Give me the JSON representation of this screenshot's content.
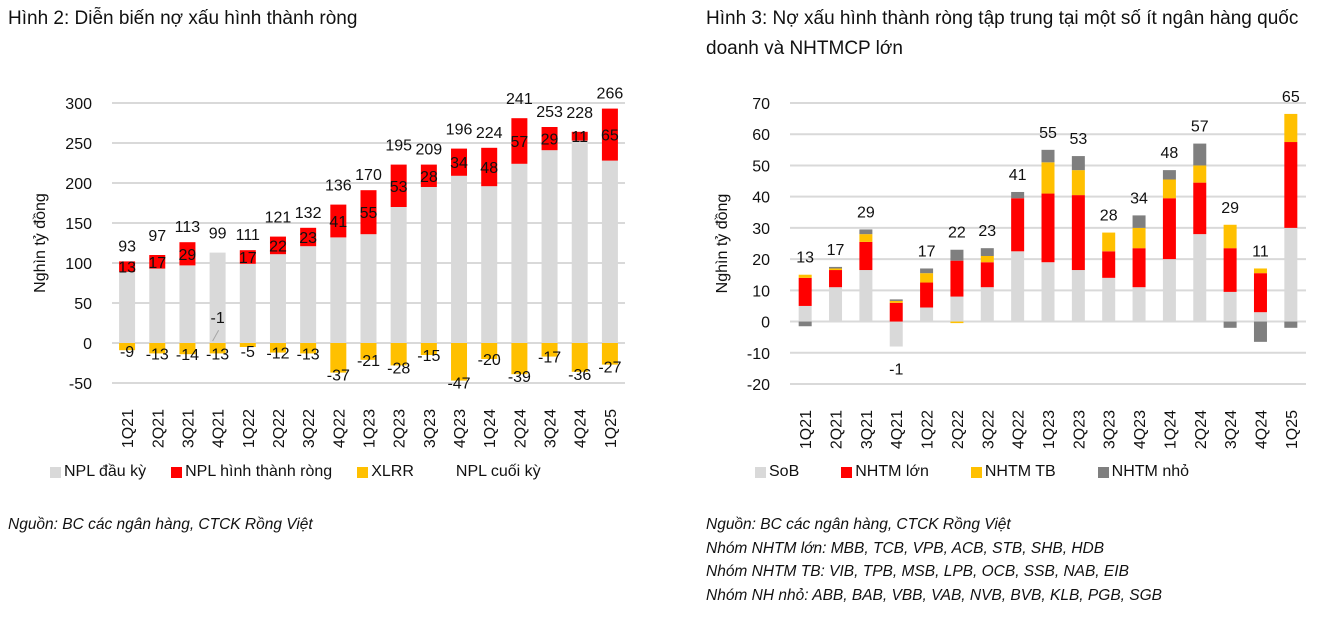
{
  "chart_data": [
    {
      "type": "bar",
      "stacked": true,
      "title": "Hình 2: Diễn biến nợ xấu hình thành ròng",
      "xlabel": "",
      "ylabel": "Nghìn tỷ đồng",
      "ylim": [
        -50,
        300
      ],
      "yticks": [
        -50,
        0,
        50,
        100,
        150,
        200,
        250,
        300
      ],
      "ytick_labels": [
        "-50",
        "0",
        "50",
        "100",
        "150",
        "200",
        "250",
        "300"
      ],
      "grid": true,
      "legend_position": "bottom",
      "categories": [
        "1Q21",
        "2Q21",
        "3Q21",
        "4Q21",
        "1Q22",
        "2Q22",
        "3Q22",
        "4Q22",
        "1Q23",
        "2Q23",
        "3Q23",
        "4Q23",
        "1Q24",
        "2Q24",
        "3Q24",
        "4Q24",
        "1Q25"
      ],
      "series": [
        {
          "name": "NPL đầu kỳ",
          "color": "#d9d9d9",
          "values": [
            89,
            93,
            97,
            113,
            99,
            111,
            121,
            132,
            136,
            170,
            195,
            209,
            196,
            224,
            241,
            253,
            228
          ]
        },
        {
          "name": "NPL hình thành ròng",
          "color": "#ff0000",
          "values": [
            13,
            17,
            29,
            -1,
            17,
            22,
            23,
            41,
            55,
            53,
            28,
            34,
            48,
            57,
            29,
            11,
            65
          ],
          "labels": [
            "13",
            "17",
            "29",
            "-1",
            "17",
            "22",
            "23",
            "41",
            "55",
            "53",
            "28",
            "34",
            "48",
            "57",
            "29",
            "11",
            "65"
          ]
        },
        {
          "name": "XLRR",
          "color": "#ffc000",
          "values": [
            -9,
            -13,
            -14,
            -13,
            -5,
            -12,
            -13,
            -37,
            -21,
            -28,
            -15,
            -47,
            -20,
            -39,
            -17,
            -36,
            -27
          ],
          "labels": [
            "-9",
            "-13",
            "-14",
            "-13",
            "-5",
            "-12",
            "-13",
            "-37",
            "-21",
            "-28",
            "-15",
            "-47",
            "-20",
            "-39",
            "-17",
            "-36",
            "-27"
          ]
        },
        {
          "name": "NPL cuối kỳ",
          "color": "none",
          "values": [
            93,
            97,
            113,
            99,
            111,
            121,
            132,
            136,
            170,
            195,
            209,
            196,
            224,
            241,
            253,
            228,
            266
          ],
          "labels": [
            "93",
            "97",
            "113",
            "99",
            "111",
            "121",
            "132",
            "136",
            "170",
            "195",
            "209",
            "196",
            "224",
            "241",
            "253",
            "228",
            "266"
          ]
        }
      ]
    },
    {
      "type": "bar",
      "stacked": true,
      "title": "Hình 3: Nợ xấu hình thành ròng  tập trung tại một số ít ngân hàng quốc doanh và NHTMCP lớn",
      "xlabel": "",
      "ylabel": "Nghìn tỷ đồng",
      "ylim": [
        -20,
        70
      ],
      "yticks": [
        -20,
        -10,
        0,
        10,
        20,
        30,
        40,
        50,
        60,
        70
      ],
      "ytick_labels": [
        "-20",
        "-10",
        "0",
        "10",
        "20",
        "30",
        "40",
        "50",
        "60",
        "70"
      ],
      "grid": true,
      "legend_position": "bottom",
      "categories": [
        "1Q21",
        "2Q21",
        "3Q21",
        "4Q21",
        "1Q22",
        "2Q22",
        "3Q22",
        "4Q22",
        "1Q23",
        "2Q23",
        "3Q23",
        "4Q23",
        "1Q24",
        "2Q24",
        "3Q24",
        "4Q24",
        "1Q25"
      ],
      "series": [
        {
          "name": "SoB",
          "color": "#d9d9d9",
          "values": [
            5,
            11,
            16.5,
            -8,
            4.5,
            8,
            11,
            22.5,
            19,
            16.5,
            14,
            11,
            20,
            28,
            9.5,
            3,
            30
          ]
        },
        {
          "name": "NHTM lớn",
          "color": "#ff0000",
          "values": [
            9,
            5.5,
            9,
            6,
            8,
            11.5,
            8,
            17,
            22,
            24,
            8.5,
            12.5,
            19.5,
            16.5,
            14,
            12.5,
            27.5
          ]
        },
        {
          "name": "NHTM TB",
          "color": "#ffc000",
          "values": [
            1,
            0.5,
            2.5,
            0.6,
            3,
            -0.5,
            2,
            0,
            10,
            8,
            6,
            6.5,
            6,
            5.5,
            7.5,
            1.5,
            9
          ]
        },
        {
          "name": "NHTM nhỏ",
          "color": "#7f7f7f",
          "values": [
            -1.5,
            0.5,
            1.5,
            0.5,
            1.5,
            3.5,
            2.5,
            2,
            4,
            4.5,
            0,
            4,
            3,
            7,
            -2,
            -6.5,
            -2
          ]
        }
      ],
      "total_labels": [
        "13",
        "17",
        "29",
        "-1",
        "17",
        "22",
        "23",
        "41",
        "55",
        "53",
        "28",
        "34",
        "48",
        "57",
        "29",
        "11",
        "65"
      ],
      "totals": [
        13,
        17,
        29,
        -1,
        17,
        22,
        23,
        41,
        55,
        53,
        28,
        34,
        48,
        57,
        29,
        11,
        65
      ]
    }
  ],
  "left": {
    "title": "Hình 2: Diễn biến nợ xấu hình thành ròng",
    "legend": [
      {
        "label": "NPL đầu kỳ",
        "color": "#d9d9d9"
      },
      {
        "label": "NPL hình thành ròng",
        "color": "#ff0000"
      },
      {
        "label": "XLRR",
        "color": "#ffc000"
      },
      {
        "label": "NPL cuối kỳ",
        "color": "none"
      }
    ],
    "notes": [
      "Nguồn: BC các ngân hàng, CTCK Rồng Việt"
    ]
  },
  "right": {
    "title": "Hình 3: Nợ xấu hình thành ròng  tập trung tại một số ít ngân hàng quốc doanh và NHTMCP lớn",
    "legend": [
      {
        "label": "SoB",
        "color": "#d9d9d9"
      },
      {
        "label": "NHTM lớn",
        "color": "#ff0000"
      },
      {
        "label": "NHTM TB",
        "color": "#ffc000"
      },
      {
        "label": "NHTM nhỏ",
        "color": "#7f7f7f"
      }
    ],
    "notes": [
      "Nguồn: BC các ngân hàng, CTCK Rồng Việt",
      "Nhóm NHTM lớn: MBB, TCB, VPB, ACB, STB, SHB, HDB",
      "Nhóm NHTM TB: VIB, TPB, MSB, LPB, OCB, SSB, NAB, EIB",
      "Nhóm NH nhỏ: ABB, BAB, VBB, VAB, NVB, BVB, KLB, PGB, SGB"
    ]
  }
}
